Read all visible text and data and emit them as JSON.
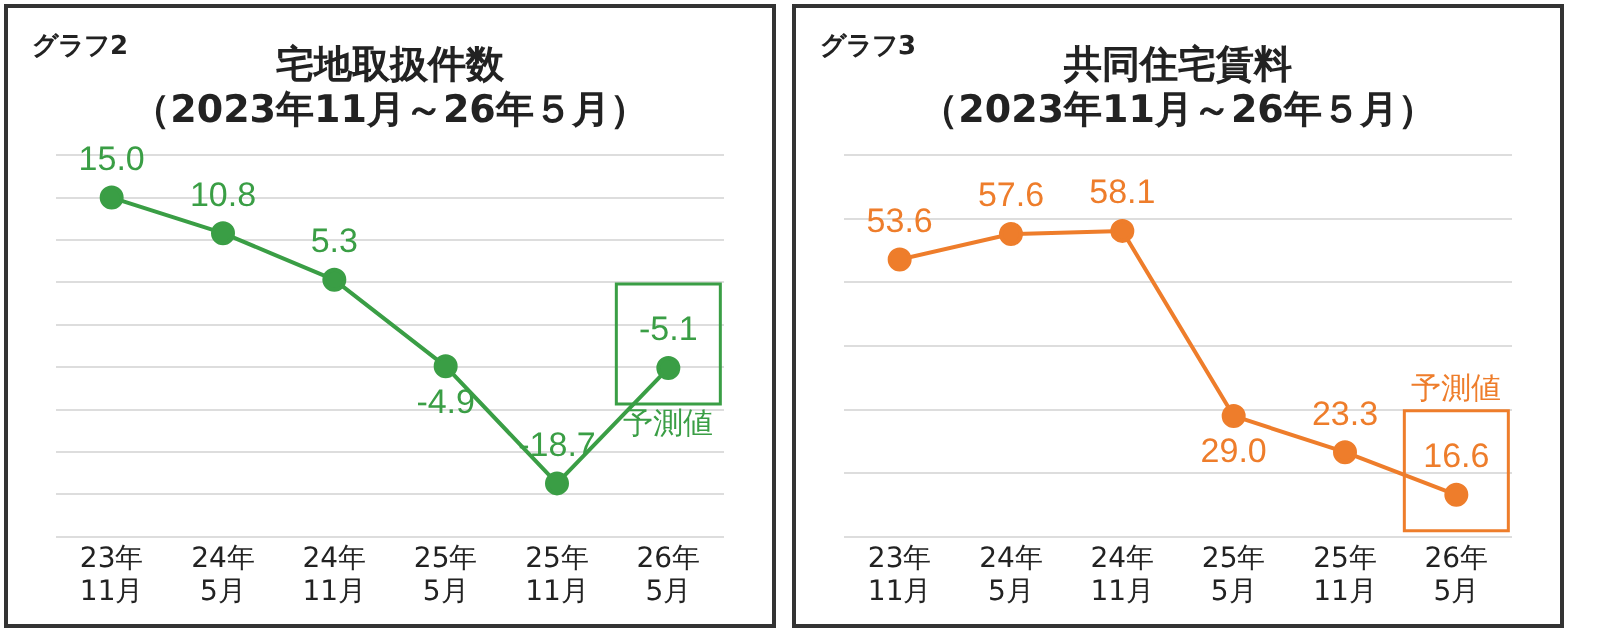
{
  "chart_data": [
    {
      "type": "line",
      "title": "宅地取扱件数",
      "subtitle": "（2023年11月～26年５月）",
      "annotations": [
        "グラフ2",
        {
          "text": "予測値",
          "x": "26年\n5月",
          "y": -5.1
        }
      ],
      "categories": [
        "23年\n11月",
        "24年\n5月",
        "24年\n11月",
        "25年\n5月",
        "25年\n11月",
        "26年\n5月"
      ],
      "series": [
        {
          "color": "#3a9e45",
          "values": [
            15.0,
            10.8,
            5.3,
            -4.9,
            -18.7,
            -5.1
          ],
          "value_labels": [
            "15.0",
            "10.8",
            "5.3",
            "-4.9",
            "-18.7",
            "-5.1"
          ]
        }
      ],
      "grid": "y",
      "tick_labels": "x",
      "marker": "circle",
      "line_style": "solid"
    },
    {
      "type": "line",
      "title": "共同住宅賃料",
      "subtitle": "（2023年11月～26年５月）",
      "annotations": [
        "グラフ3",
        {
          "text": "予測値",
          "x": "26年\n5月",
          "y": 16.6
        }
      ],
      "categories": [
        "23年\n11月",
        "24年\n5月",
        "24年\n11月",
        "25年\n5月",
        "25年\n11月",
        "26年\n5月"
      ],
      "series": [
        {
          "color": "#ee7d2b",
          "values": [
            53.6,
            57.6,
            58.1,
            29.0,
            23.3,
            16.6
          ],
          "value_labels": [
            "53.6",
            "57.6",
            "58.1",
            "29.0",
            "23.3",
            "16.6"
          ]
        }
      ],
      "grid": "y",
      "tick_labels": "x",
      "marker": "circle",
      "line_style": "solid"
    }
  ]
}
